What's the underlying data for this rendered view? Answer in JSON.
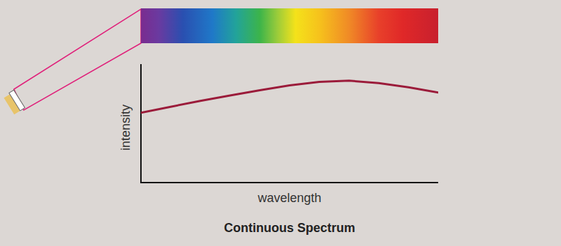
{
  "chart_data": {
    "type": "line",
    "title": "Continuous Spectrum",
    "xlabel": "wavelength",
    "ylabel": "intensity",
    "x": [
      0,
      10,
      20,
      30,
      40,
      50,
      60,
      70,
      80,
      90,
      100
    ],
    "values": [
      59,
      64,
      69,
      73.5,
      78,
      82,
      85,
      86,
      84,
      80.5,
      76
    ],
    "color": "#9b1b3a",
    "xlim": [
      0,
      100
    ],
    "ylim": [
      0,
      100
    ],
    "tick_labels": false
  }
}
